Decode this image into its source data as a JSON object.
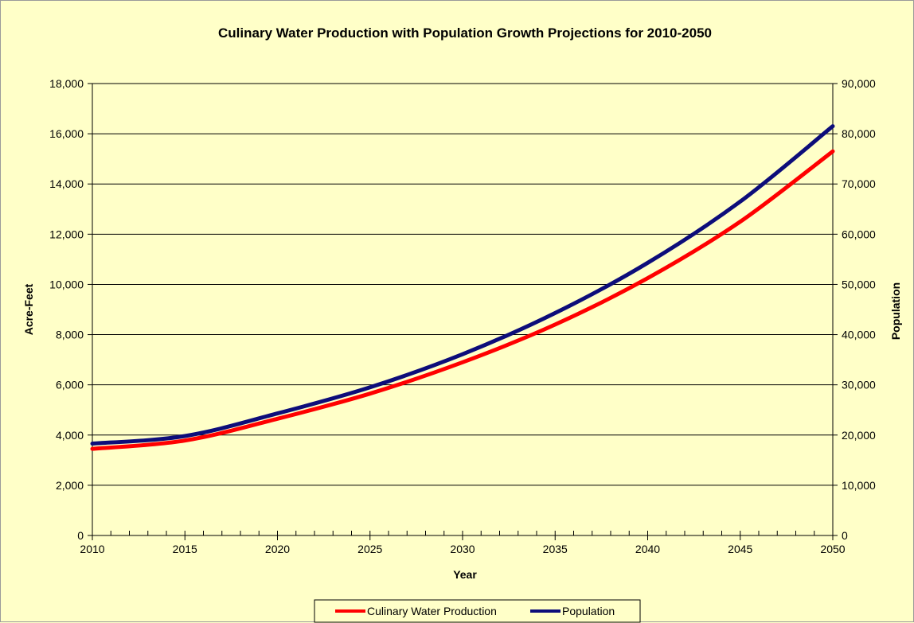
{
  "chart_data": {
    "type": "line",
    "title": "Culinary Water Production with Population Growth Projections for 2010-2050",
    "xlabel": "Year",
    "ylabel": "Acre-Feet",
    "y2label": "Population",
    "xlim": [
      2010,
      2050
    ],
    "ylim": [
      0,
      18000
    ],
    "y2lim": [
      0,
      90000
    ],
    "x_ticks": [
      "2010",
      "2015",
      "2020",
      "2025",
      "2030",
      "2035",
      "2040",
      "2045",
      "2050"
    ],
    "y_ticks": [
      "0",
      "2,000",
      "4,000",
      "6,000",
      "8,000",
      "10,000",
      "12,000",
      "14,000",
      "16,000",
      "18,000"
    ],
    "y2_ticks": [
      "0",
      "10,000",
      "20,000",
      "30,000",
      "40,000",
      "50,000",
      "60,000",
      "70,000",
      "80,000",
      "90,000"
    ],
    "grid": true,
    "legend_position": "bottom",
    "x": [
      2010,
      2015,
      2020,
      2025,
      2030,
      2035,
      2040,
      2045,
      2050
    ],
    "series": [
      {
        "name": "Culinary Water Production",
        "axis": "left",
        "color": "#ff0000",
        "values": [
          3450,
          3780,
          4650,
          5650,
          6900,
          8400,
          10250,
          12500,
          15300
        ]
      },
      {
        "name": "Population",
        "axis": "right",
        "color": "#0d0d7a",
        "values": [
          18300,
          19800,
          24300,
          29500,
          36100,
          44300,
          54300,
          66500,
          81500
        ]
      }
    ]
  }
}
